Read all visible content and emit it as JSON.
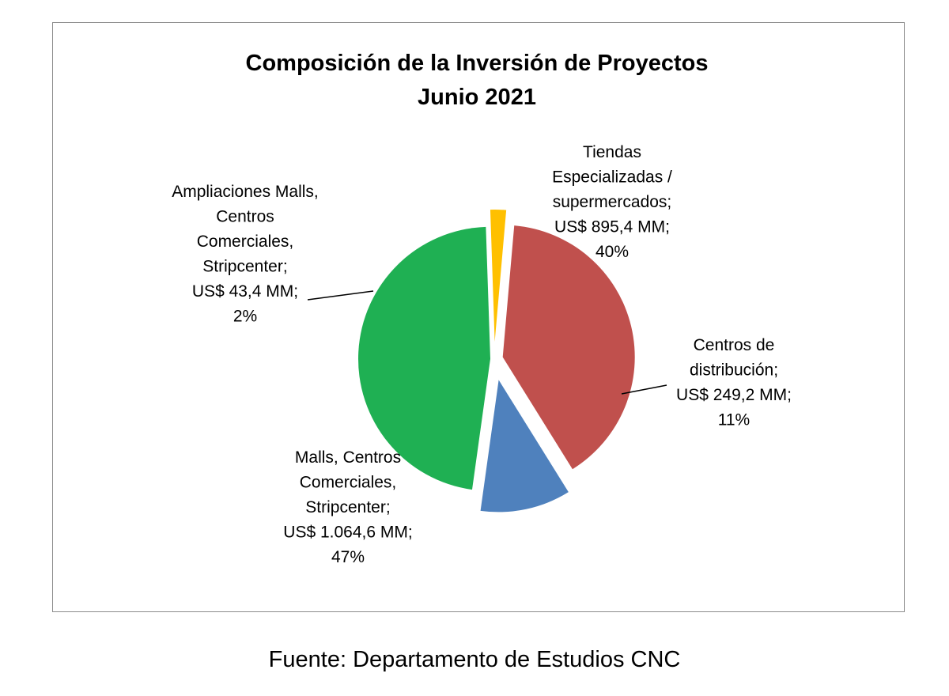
{
  "chart_data": {
    "type": "pie",
    "title": [
      "Composición de la Inversión de Proyectos",
      "Junio 2021"
    ],
    "slices": [
      {
        "category": [
          "Tiendas",
          "Especializadas /",
          "supermercados;"
        ],
        "amount_text": "US$ 895,4 MM;",
        "value": 895.4,
        "percent_text": "40%",
        "color": "#c0504d"
      },
      {
        "category": [
          "Centros de",
          "distribución;"
        ],
        "amount_text": "US$ 249,2 MM;",
        "value": 249.2,
        "percent_text": "11%",
        "color": "#4f81bd"
      },
      {
        "category": [
          "Malls, Centros",
          "Comerciales,",
          "Stripcenter;"
        ],
        "amount_text": "US$ 1.064,6 MM;",
        "value": 1064.6,
        "percent_text": "47%",
        "color": "#1fb053"
      },
      {
        "category": [
          "Ampliaciones Malls,",
          "Centros",
          "Comerciales,",
          "Stripcenter;"
        ],
        "amount_text": "US$ 43,4 MM;",
        "value": 43.4,
        "percent_text": "2%",
        "color": "#ffc000"
      }
    ],
    "legend": "none",
    "exploded": true
  },
  "source": "Fuente: Departamento de Estudios CNC"
}
